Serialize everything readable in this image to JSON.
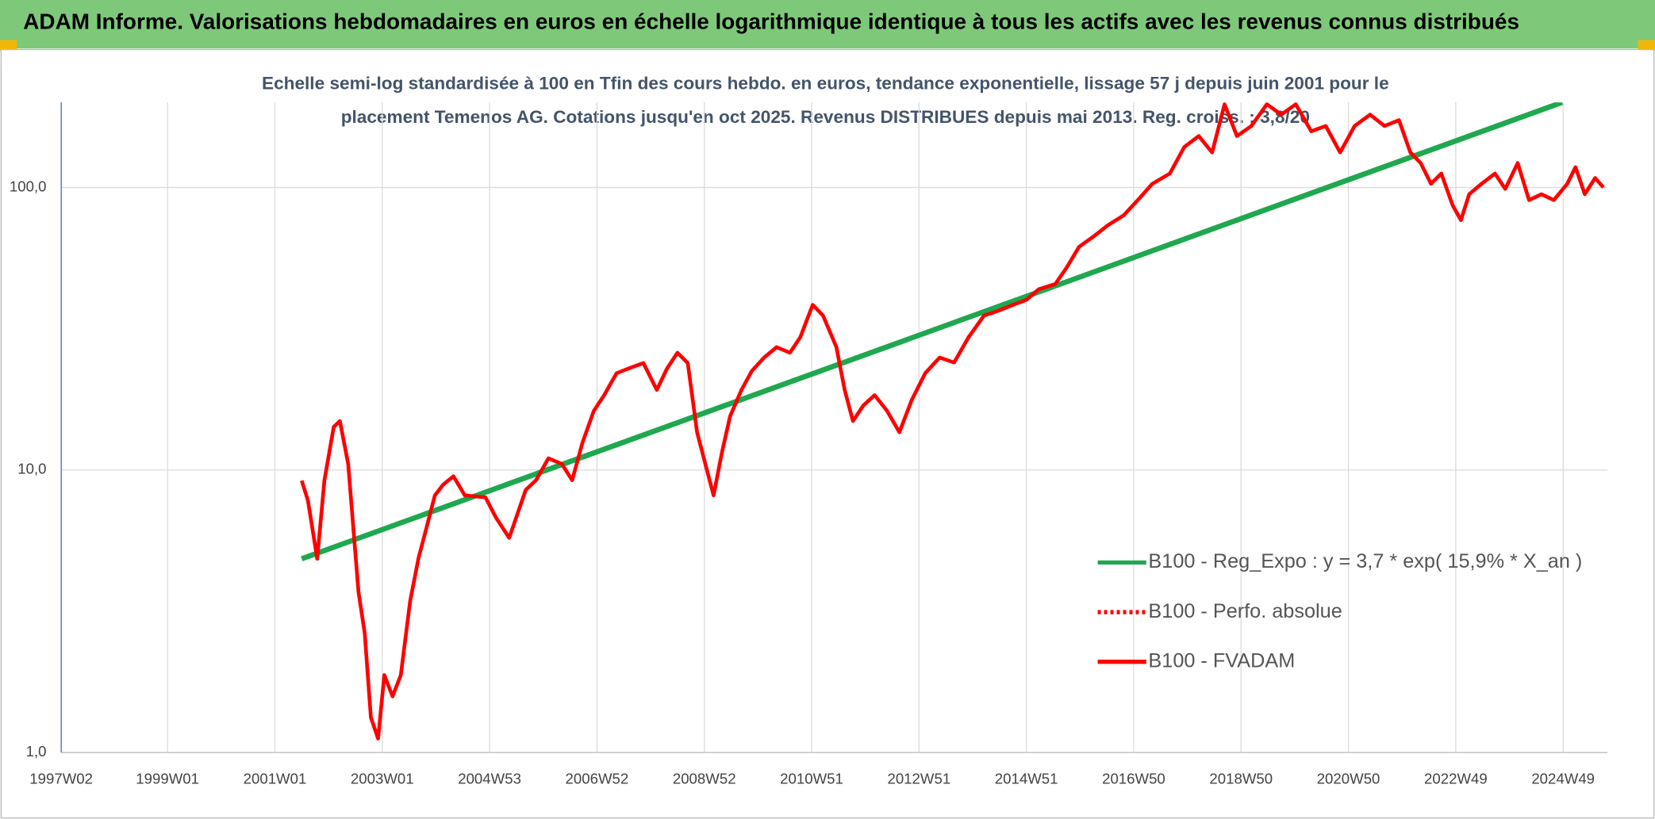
{
  "header": {
    "title": "ADAM Informe. Valorisations hebdomadaires en euros en échelle logarithmique identique à tous les actifs avec les revenus connus distribués"
  },
  "chart_data": {
    "type": "line",
    "subtitle": [
      "Echelle semi-log standardisée à 100 en Tfin des cours hebdo. en euros, tendance exponentielle, lissage 57 j depuis juin 2001 pour le",
      "placement Temenos AG. Cotations jusqu'en oct 2025. Revenus DISTRIBUES depuis mai 2013. Reg. croiss. : 3,8/20"
    ],
    "log_y": true,
    "grid": true,
    "legend": "right",
    "xlim": [
      0,
      1498
    ],
    "xticks": [
      {
        "value": 0,
        "label": "1997W02"
      },
      {
        "value": 103,
        "label": "1999W01"
      },
      {
        "value": 207,
        "label": "2001W01"
      },
      {
        "value": 311,
        "label": "2003W01"
      },
      {
        "value": 415,
        "label": "2004W53"
      },
      {
        "value": 519,
        "label": "2006W52"
      },
      {
        "value": 623,
        "label": "2008W52"
      },
      {
        "value": 727,
        "label": "2010W51"
      },
      {
        "value": 831,
        "label": "2012W51"
      },
      {
        "value": 935,
        "label": "2014W51"
      },
      {
        "value": 1039,
        "label": "2016W50"
      },
      {
        "value": 1143,
        "label": "2018W50"
      },
      {
        "value": 1247,
        "label": "2020W50"
      },
      {
        "value": 1351,
        "label": "2022W49"
      },
      {
        "value": 1455,
        "label": "2024W49"
      }
    ],
    "ylim": [
      1,
      200
    ],
    "yticks": [
      {
        "value": 1,
        "label": "1,0"
      },
      {
        "value": 10,
        "label": "10,0"
      },
      {
        "value": 100,
        "label": "100,0"
      }
    ],
    "series": [
      {
        "name": "B100 - Reg_Expo : y = 3,7 * exp( 15,9% *  X_an )",
        "color": "#1fa84f",
        "style": "solid",
        "x": [
          233,
          1454
        ],
        "values": [
          4.85,
          200
        ]
      },
      {
        "name": "B100 - Perfo. absolue",
        "color": "#ff0000",
        "style": "dotted",
        "x": [],
        "values": []
      },
      {
        "name": "B100 - FVADAM",
        "color": "#ff0000",
        "style": "solid",
        "x": [
          233,
          239,
          248,
          255,
          264,
          270,
          278,
          288,
          294,
          300,
          307,
          313,
          321,
          329,
          338,
          346,
          354,
          362,
          370,
          380,
          391,
          411,
          421,
          434,
          450,
          460,
          472,
          485,
          495,
          505,
          516,
          526,
          538,
          550,
          564,
          577,
          587,
          597,
          607,
          616,
          624,
          632,
          640,
          648,
          659,
          669,
          681,
          693,
          706,
          716,
          728,
          738,
          751,
          759,
          767,
          777,
          788,
          800,
          812,
          824,
          837,
          851,
          865,
          879,
          894,
          908,
          922,
          935,
          947,
          963,
          974,
          986,
          1000,
          1014,
          1029,
          1043,
          1057,
          1074,
          1088,
          1102,
          1115,
          1127,
          1139,
          1153,
          1168,
          1182,
          1196,
          1211,
          1225,
          1239,
          1253,
          1268,
          1282,
          1296,
          1307,
          1317,
          1327,
          1337,
          1348,
          1356,
          1364,
          1376,
          1389,
          1399,
          1411,
          1422,
          1434,
          1446,
          1459,
          1467,
          1476,
          1486,
          1494
        ],
        "values": [
          9.17,
          7.8,
          4.85,
          9.2,
          14.2,
          14.9,
          10.5,
          3.7,
          2.65,
          1.33,
          1.12,
          1.88,
          1.58,
          1.88,
          3.43,
          4.85,
          6.27,
          8.13,
          8.87,
          9.5,
          8.13,
          8.0,
          6.8,
          5.75,
          8.5,
          9.2,
          11,
          10.5,
          9.2,
          12.5,
          16.2,
          18.4,
          22,
          22.9,
          23.9,
          19.2,
          22.9,
          26,
          23.9,
          13.6,
          10.5,
          8.13,
          11.5,
          15.5,
          19.2,
          22.4,
          25,
          27.2,
          26,
          29.5,
          38.4,
          35.2,
          27.2,
          19.2,
          14.9,
          16.9,
          18.4,
          16.2,
          13.6,
          17.7,
          22,
          25,
          24,
          29.5,
          35.2,
          36.6,
          38.4,
          40,
          43.6,
          45.5,
          52,
          61.6,
          67,
          73.5,
          79.5,
          90.2,
          103,
          112,
          139,
          152,
          133,
          197,
          152,
          165,
          197,
          181,
          197,
          158,
          165,
          133,
          165,
          181,
          165,
          173,
          133,
          122,
          103,
          112,
          86.4,
          76.6,
          94.6,
          103,
          112,
          98.8,
          122,
          90.2,
          94.6,
          90.2,
          103,
          118,
          94.6,
          108,
          100
        ]
      }
    ]
  }
}
